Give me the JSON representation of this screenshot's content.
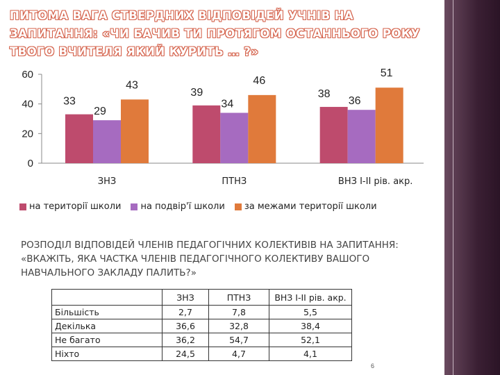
{
  "slide": {
    "title": "ПИТОМА ВАГА СТВЕРДНИХ ВІДПОВІДЕЙ УЧНІВ НА ЗАПИТАННЯ: «ЧИ БАЧИВ ТИ ПРОТЯГОМ ОСТАННЬОГО РОКУ ТВОГО ВЧИТЕЛЯ ЯКИЙ КУРИТЬ … ?»",
    "subtitle": "РОЗПОДІЛ ВІДПОВІДЕЙ ЧЛЕНІВ ПЕДАГОГІЧНИХ КОЛЕКТИВІВ НА ЗАПИТАННЯ: «ВКАЖІТЬ, ЯКА ЧАСТКА ЧЛЕНІВ ПЕДАГОГІЧНОГО КОЛЕКТИВУ ВАШОГО НАВЧАЛЬНОГО ЗАКЛАДУ ПАЛИТЬ?»",
    "page_number": "6"
  },
  "colors": {
    "series1": "#be4b6d",
    "series2": "#a66bc0",
    "series3": "#e07a3b",
    "axis": "#888888"
  },
  "chart_data": {
    "type": "bar",
    "title": "",
    "categories": [
      "ЗНЗ",
      "ПТНЗ",
      "ВНЗ І-ІІ рів. акр."
    ],
    "series": [
      {
        "name": "на території школи",
        "values": [
          33,
          39,
          38
        ]
      },
      {
        "name": "на подвір'ї школи",
        "values": [
          29,
          34,
          36
        ]
      },
      {
        "name": "за межами території школи",
        "values": [
          43,
          46,
          51
        ]
      }
    ],
    "y_ticks": [
      0,
      20,
      40,
      60
    ],
    "ylim": [
      0,
      60
    ],
    "legend_position": "bottom",
    "grid": false
  },
  "table": {
    "headers": [
      "",
      "ЗНЗ",
      "ПТНЗ",
      "ВНЗ І-ІІ рів. акр."
    ],
    "rows": [
      {
        "label": "Більшість",
        "values": [
          "2,7",
          "7,8",
          "5,5"
        ]
      },
      {
        "label": "Декілька",
        "values": [
          "36,6",
          "32,8",
          "38,4"
        ]
      },
      {
        "label": "Не багато",
        "values": [
          "36,2",
          "54,7",
          "52,1"
        ]
      },
      {
        "label": "Ніхто",
        "values": [
          "24,5",
          "4,7",
          "4,1"
        ]
      }
    ]
  }
}
